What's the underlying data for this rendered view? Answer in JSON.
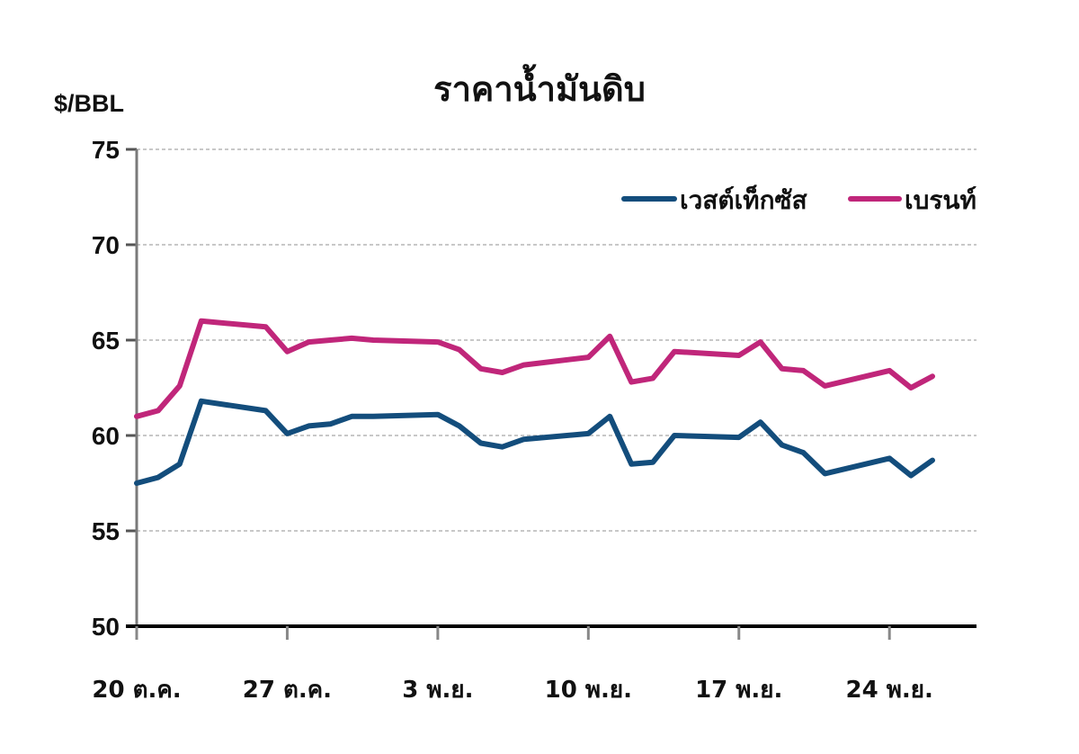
{
  "chart_data": {
    "type": "line",
    "title": "ราคาน้ำมันดิบ",
    "ylabel": "$/BBL",
    "xlabel": "",
    "ylim": [
      50,
      75
    ],
    "yticks": [
      50,
      55,
      60,
      65,
      70,
      75
    ],
    "grid": "horizontal-dotted",
    "legend_position": "top-right",
    "x_tick_labels": [
      "20 ต.ค.",
      "27 ต.ค.",
      "3 พ.ย.",
      "10 พ.ย.",
      "17 พ.ย.",
      "24 พ.ย."
    ],
    "x_tick_days": [
      0,
      7,
      14,
      21,
      28,
      35
    ],
    "x_days": [
      0,
      1,
      2,
      3,
      6,
      7,
      8,
      9,
      10,
      11,
      14,
      15,
      16,
      17,
      18,
      21,
      22,
      23,
      24,
      25,
      28,
      29,
      30,
      31,
      32,
      35,
      36,
      37
    ],
    "series": [
      {
        "name": "เวสต์เท็กซัส",
        "color": "#134d7c",
        "values": [
          57.5,
          57.8,
          58.5,
          61.8,
          61.3,
          60.1,
          60.5,
          60.6,
          61.0,
          61.0,
          61.1,
          60.5,
          59.6,
          59.4,
          59.8,
          60.1,
          61.0,
          58.5,
          58.6,
          60.0,
          59.9,
          60.7,
          59.5,
          59.1,
          58.0,
          58.8,
          57.9,
          58.7
        ]
      },
      {
        "name": "เบรนท์",
        "color": "#c0267a",
        "values": [
          61.0,
          61.3,
          62.6,
          66.0,
          65.7,
          64.4,
          64.9,
          65.0,
          65.1,
          65.0,
          64.9,
          64.5,
          63.5,
          63.3,
          63.7,
          64.1,
          65.2,
          62.8,
          63.0,
          64.4,
          64.2,
          64.9,
          63.5,
          63.4,
          62.6,
          63.4,
          62.5,
          63.1
        ]
      }
    ]
  }
}
